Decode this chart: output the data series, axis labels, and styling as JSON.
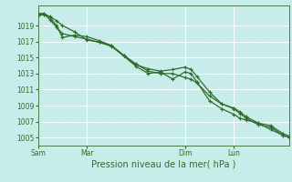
{
  "title": "",
  "xlabel": "Pression niveau de la mer( hPa )",
  "bg_color": "#c8ecea",
  "grid_major_color": "#ffffff",
  "grid_minor_color": "#daecea",
  "line_color": "#2d6e2d",
  "vline_color": "#4a7a4a",
  "ylim": [
    1004.0,
    1021.5
  ],
  "yticks": [
    1005,
    1007,
    1009,
    1011,
    1013,
    1015,
    1017,
    1019
  ],
  "xtick_labels": [
    "Sam",
    "Mar",
    "Dim",
    "Lun"
  ],
  "xtick_positions": [
    0,
    24,
    72,
    96
  ],
  "vline_positions": [
    0,
    24,
    72,
    96
  ],
  "total_hours": 123,
  "line1_x": [
    0,
    3,
    6,
    9,
    12,
    18,
    24,
    30,
    36,
    42,
    48,
    54,
    60,
    66,
    72,
    75,
    78,
    84,
    90,
    96,
    99,
    102,
    108,
    114,
    120,
    123
  ],
  "line1_y": [
    1020.3,
    1020.4,
    1020.1,
    1019.6,
    1019.0,
    1018.2,
    1017.2,
    1016.9,
    1016.5,
    1015.3,
    1014.2,
    1013.3,
    1013.0,
    1013.0,
    1012.5,
    1012.3,
    1011.8,
    1010.2,
    1009.2,
    1008.7,
    1008.2,
    1007.6,
    1006.8,
    1006.5,
    1005.5,
    1005.2
  ],
  "line2_x": [
    0,
    3,
    6,
    9,
    12,
    18,
    24,
    30,
    36,
    42,
    48,
    54,
    60,
    66,
    72,
    75,
    78,
    84,
    90,
    96,
    99,
    102,
    108,
    114,
    120,
    123
  ],
  "line2_y": [
    1020.3,
    1020.4,
    1019.7,
    1018.8,
    1018.0,
    1017.6,
    1017.3,
    1016.9,
    1016.4,
    1015.2,
    1014.1,
    1013.6,
    1013.3,
    1013.5,
    1013.8,
    1013.5,
    1012.6,
    1010.7,
    1009.2,
    1008.6,
    1008.0,
    1007.4,
    1006.6,
    1006.3,
    1005.3,
    1005.0
  ],
  "line3_x": [
    0,
    3,
    6,
    9,
    12,
    18,
    24,
    30,
    36,
    42,
    48,
    54,
    60,
    66,
    72,
    75,
    78,
    84,
    90,
    96,
    99,
    102,
    108,
    114,
    120,
    123
  ],
  "line3_y": [
    1020.5,
    1020.5,
    1020.0,
    1019.0,
    1017.5,
    1017.8,
    1017.6,
    1017.1,
    1016.5,
    1015.2,
    1013.9,
    1013.0,
    1013.2,
    1012.3,
    1013.2,
    1013.0,
    1011.9,
    1009.6,
    1008.6,
    1007.9,
    1007.4,
    1007.2,
    1006.8,
    1006.0,
    1005.3,
    1005.0
  ],
  "marker": "+",
  "markersize": 3.5,
  "linewidth": 0.9,
  "tick_fontsize": 5.5,
  "xlabel_fontsize": 7
}
